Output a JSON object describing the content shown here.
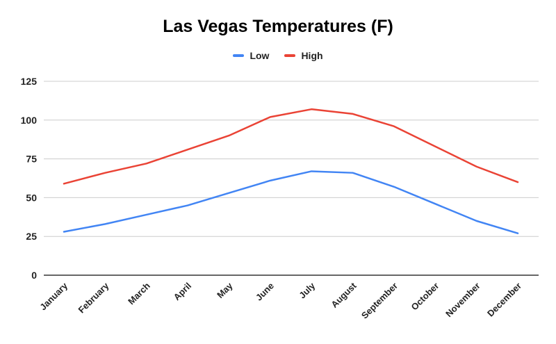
{
  "chart_data": {
    "type": "line",
    "title": "Las Vegas Temperatures (F)",
    "xlabel": "",
    "ylabel": "",
    "categories": [
      "January",
      "February",
      "March",
      "April",
      "May",
      "June",
      "July",
      "August",
      "September",
      "October",
      "November",
      "December"
    ],
    "ylim": [
      0,
      125
    ],
    "yticks": [
      0,
      25,
      50,
      75,
      100,
      125
    ],
    "grid": true,
    "legend_position": "top",
    "series": [
      {
        "name": "Low",
        "color": "#4285f4",
        "values": [
          28,
          33,
          39,
          45,
          53,
          61,
          67,
          66,
          57,
          46,
          35,
          27
        ]
      },
      {
        "name": "High",
        "color": "#ea4335",
        "values": [
          59,
          66,
          72,
          81,
          90,
          102,
          107,
          104,
          96,
          83,
          70,
          60
        ]
      }
    ]
  }
}
